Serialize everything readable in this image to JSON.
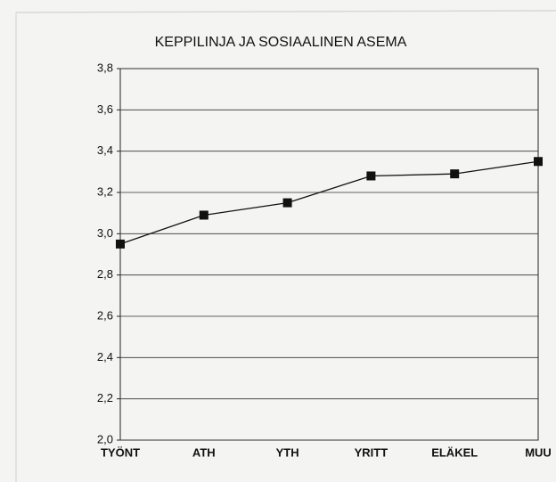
{
  "chart_data": {
    "type": "line",
    "title": "KEPPILINJA JA SOSIAALINEN ASEMA",
    "categories": [
      "TYÖNT",
      "ATH",
      "YTH",
      "YRITT",
      "ELÄKEL",
      "MUU"
    ],
    "values": [
      2.95,
      3.09,
      3.15,
      3.28,
      3.29,
      3.35
    ],
    "color": "#111111",
    "ylim": [
      2.0,
      3.8
    ],
    "yticks": [
      {
        "value": 2.0,
        "label": "2,0"
      },
      {
        "value": 2.2,
        "label": "2,2"
      },
      {
        "value": 2.4,
        "label": "2,4"
      },
      {
        "value": 2.6,
        "label": "2,6"
      },
      {
        "value": 2.8,
        "label": "2,8"
      },
      {
        "value": 3.0,
        "label": "3,0"
      },
      {
        "value": 3.2,
        "label": "3,2"
      },
      {
        "value": 3.4,
        "label": "3,4"
      },
      {
        "value": 3.6,
        "label": "3,6"
      },
      {
        "value": 3.8,
        "label": "3,8"
      }
    ],
    "grid": true
  }
}
